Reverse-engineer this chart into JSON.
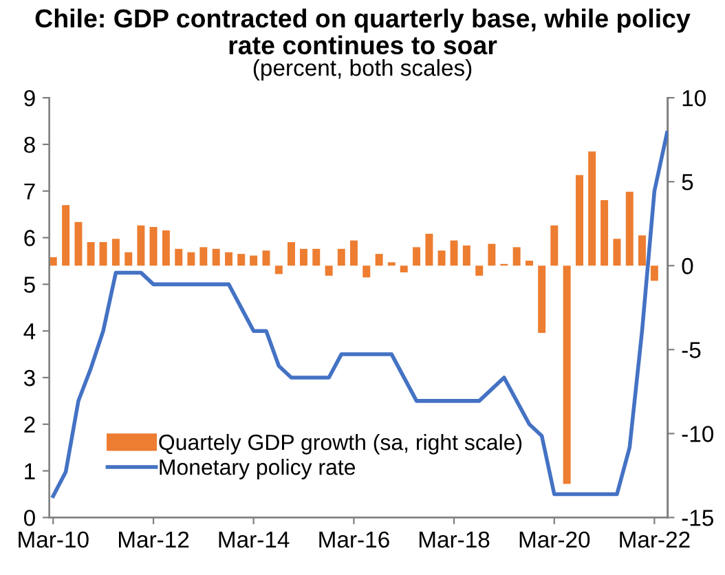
{
  "chart_data": {
    "type": "bar",
    "title": "Chile: GDP contracted on quarterly base, while policy\nrate continues to soar",
    "subtitle": "(percent, both scales)",
    "xlim": [
      "2010-02",
      "2022-06-20"
    ],
    "xticks": [
      {
        "value": "2010-03",
        "label": "Mar-10"
      },
      {
        "value": "2012-03",
        "label": "Mar-12"
      },
      {
        "value": "2014-03",
        "label": "Mar-14"
      },
      {
        "value": "2016-03",
        "label": "Mar-16"
      },
      {
        "value": "2018-03",
        "label": "Mar-18"
      },
      {
        "value": "2020-03",
        "label": "Mar-20"
      },
      {
        "value": "2022-03",
        "label": "Mar-22"
      }
    ],
    "ylim": [
      0,
      9
    ],
    "yticks": [
      0,
      1,
      2,
      3,
      4,
      5,
      6,
      7,
      8,
      9
    ],
    "y2lim": [
      -15,
      10
    ],
    "y2ticks": [
      -15,
      -10,
      -5,
      0,
      5,
      10
    ],
    "grid": false,
    "legend": "bottom left",
    "series": [
      {
        "name": "Quartely GDP growth (sa, right scale)",
        "axis": "y2",
        "color": "#ed7d31",
        "x": [
          "2010-03",
          "2010-06",
          "2010-09",
          "2010-12",
          "2011-03",
          "2011-06",
          "2011-09",
          "2011-12",
          "2012-03",
          "2012-06",
          "2012-09",
          "2012-12",
          "2013-03",
          "2013-06",
          "2013-09",
          "2013-12",
          "2014-03",
          "2014-06",
          "2014-09",
          "2014-12",
          "2015-03",
          "2015-06",
          "2015-09",
          "2015-12",
          "2016-03",
          "2016-06",
          "2016-09",
          "2016-12",
          "2017-03",
          "2017-06",
          "2017-09",
          "2017-12",
          "2018-03",
          "2018-06",
          "2018-09",
          "2018-12",
          "2019-03",
          "2019-06",
          "2019-09",
          "2019-12",
          "2020-03",
          "2020-06",
          "2020-09",
          "2020-12",
          "2021-03",
          "2021-06",
          "2021-09",
          "2021-12",
          "2022-03"
        ],
        "values": [
          0.5,
          3.6,
          2.6,
          1.4,
          1.4,
          1.6,
          0.8,
          2.4,
          2.3,
          2.1,
          1.0,
          0.8,
          1.1,
          1.0,
          0.8,
          0.7,
          0.6,
          0.9,
          -0.5,
          1.4,
          1.0,
          1.0,
          -0.6,
          1.0,
          1.5,
          -0.7,
          0.7,
          0.2,
          -0.4,
          1.1,
          1.9,
          0.9,
          1.5,
          1.2,
          -0.6,
          1.3,
          0.1,
          1.1,
          0.3,
          -4.0,
          2.4,
          -13.0,
          5.4,
          6.8,
          3.9,
          1.6,
          4.4,
          1.8,
          -0.9
        ]
      },
      {
        "name": "Monetary policy rate",
        "type": "line",
        "axis": "y",
        "color": "#4472c4",
        "marker": "none",
        "line_style": "solid",
        "x": [
          "2010-03",
          "2010-06",
          "2010-09",
          "2010-12",
          "2011-03",
          "2011-06",
          "2011-12",
          "2012-03",
          "2013-09",
          "2014-03",
          "2014-06",
          "2014-09",
          "2014-12",
          "2015-09",
          "2015-12",
          "2016-12",
          "2017-06",
          "2018-09",
          "2019-03",
          "2019-09",
          "2019-12",
          "2020-03",
          "2021-06",
          "2021-09",
          "2021-12",
          "2022-03",
          "2022-06"
        ],
        "values": [
          0.46,
          0.98,
          2.5,
          3.2,
          4.0,
          5.25,
          5.25,
          5.0,
          5.0,
          4.0,
          4.0,
          3.25,
          3.0,
          3.0,
          3.5,
          3.5,
          2.5,
          2.5,
          3.0,
          2.0,
          1.75,
          0.5,
          0.5,
          1.5,
          4.0,
          7.0,
          8.25
        ]
      }
    ]
  }
}
